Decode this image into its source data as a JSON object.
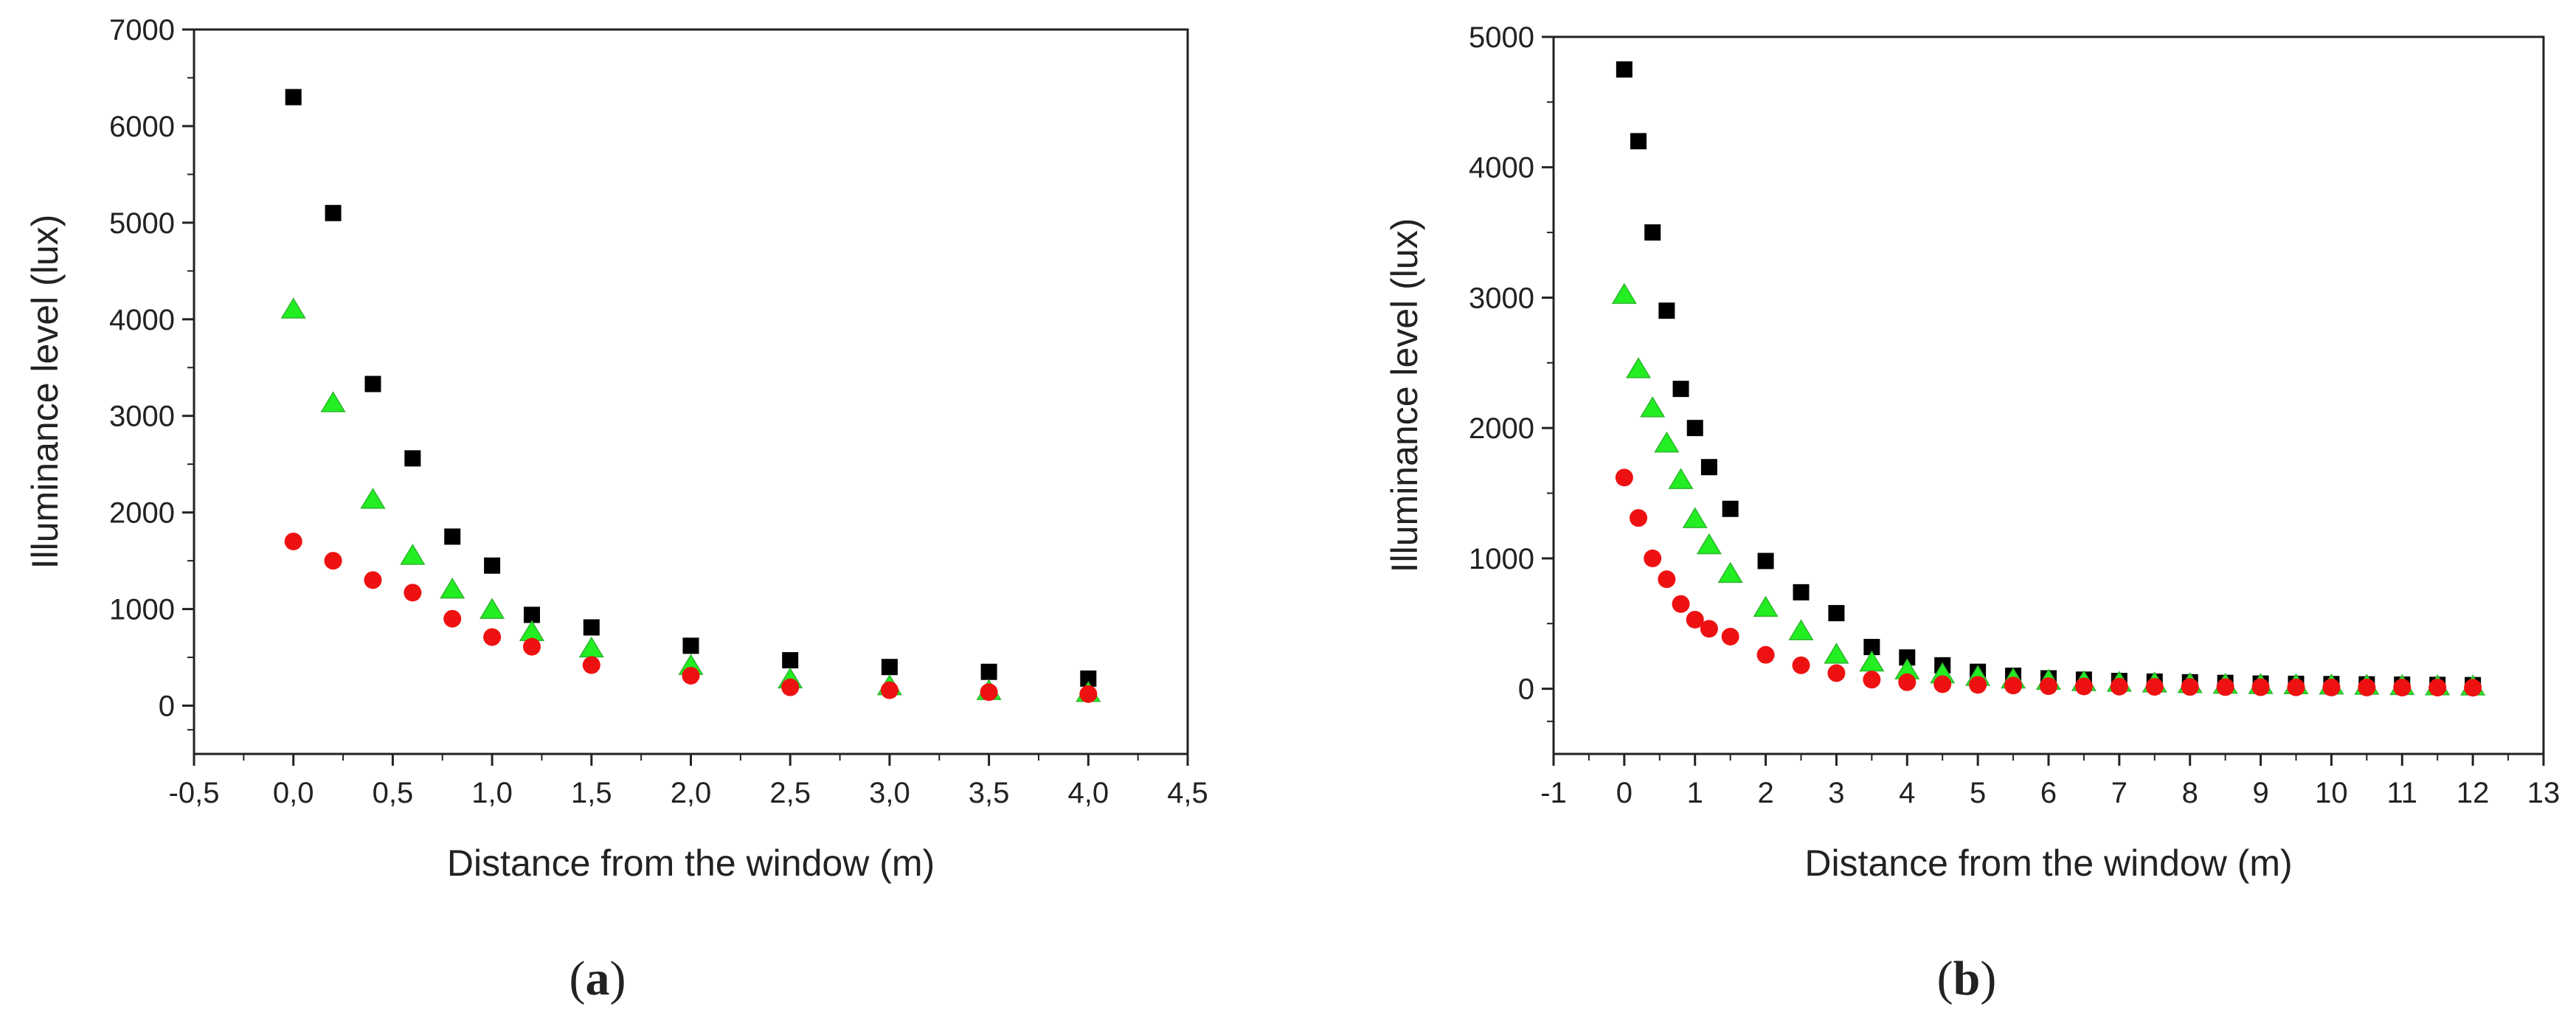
{
  "chart_data": [
    {
      "type": "scatter",
      "panel_label": "(a)",
      "panel_letter": "a",
      "xlabel": "Distance from the window (m)",
      "ylabel": "Illuminance level (lux)",
      "xlim": [
        -0.5,
        4.5
      ],
      "ylim": [
        -500,
        7000
      ],
      "xticks": [
        -0.5,
        0.0,
        0.5,
        1.0,
        1.5,
        2.0,
        2.5,
        3.0,
        3.5,
        4.0,
        4.5
      ],
      "xtick_labels": [
        "-0,5",
        "0,0",
        "0,5",
        "1,0",
        "1,5",
        "2,0",
        "2,5",
        "3,0",
        "3,5",
        "4,0",
        "4,5"
      ],
      "yticks": [
        0,
        1000,
        2000,
        3000,
        4000,
        5000,
        6000,
        7000
      ],
      "ytick_labels": [
        "0",
        "1000",
        "2000",
        "3000",
        "4000",
        "5000",
        "6000",
        "7000"
      ],
      "grid": false,
      "series": [
        {
          "name": "black squares",
          "marker": "square",
          "color": "#000000",
          "x": [
            0.0,
            0.2,
            0.4,
            0.6,
            0.8,
            1.0,
            1.2,
            1.5,
            2.0,
            2.5,
            3.0,
            3.5,
            4.0
          ],
          "y": [
            6300,
            5100,
            3330,
            2560,
            1750,
            1450,
            940,
            810,
            620,
            470,
            400,
            350,
            280
          ]
        },
        {
          "name": "green triangles",
          "marker": "triangle",
          "color": "#22ee22",
          "x": [
            0.0,
            0.2,
            0.4,
            0.6,
            0.8,
            1.0,
            1.2,
            1.5,
            2.0,
            2.5,
            3.0,
            3.5,
            4.0
          ],
          "y": [
            4100,
            3130,
            2130,
            1550,
            1200,
            990,
            760,
            590,
            410,
            270,
            200,
            150,
            130
          ]
        },
        {
          "name": "red circles",
          "marker": "circle",
          "color": "#ee1111",
          "x": [
            0.0,
            0.2,
            0.4,
            0.6,
            0.8,
            1.0,
            1.2,
            1.5,
            2.0,
            2.5,
            3.0,
            3.5,
            4.0
          ],
          "y": [
            1700,
            1500,
            1300,
            1170,
            900,
            710,
            610,
            420,
            310,
            190,
            160,
            140,
            120
          ]
        }
      ]
    },
    {
      "type": "scatter",
      "panel_label": "(b)",
      "panel_letter": "b",
      "xlabel": "Distance from the window (m)",
      "ylabel": "Illuminance level (lux)",
      "xlim": [
        -1,
        13
      ],
      "ylim": [
        -500,
        5000
      ],
      "xticks": [
        -1,
        0,
        1,
        2,
        3,
        4,
        5,
        6,
        7,
        8,
        9,
        10,
        11,
        12,
        13
      ],
      "xtick_labels": [
        "-1",
        "0",
        "1",
        "2",
        "3",
        "4",
        "5",
        "6",
        "7",
        "8",
        "9",
        "10",
        "11",
        "12",
        "13"
      ],
      "yticks": [
        0,
        1000,
        2000,
        3000,
        4000,
        5000
      ],
      "ytick_labels": [
        "0",
        "1000",
        "2000",
        "3000",
        "4000",
        "5000"
      ],
      "grid": false,
      "series": [
        {
          "name": "black squares",
          "marker": "square",
          "color": "#000000",
          "x": [
            0,
            0.2,
            0.4,
            0.6,
            0.8,
            1.0,
            1.2,
            1.5,
            2.0,
            2.5,
            3.0,
            3.5,
            4.0,
            4.5,
            5.0,
            5.5,
            6.0,
            6.5,
            7.0,
            7.5,
            8.0,
            8.5,
            9.0,
            9.5,
            10.0,
            10.5,
            11.0,
            11.5,
            12.0
          ],
          "y": [
            4750,
            4200,
            3500,
            2900,
            2300,
            2000,
            1700,
            1380,
            980,
            740,
            580,
            320,
            240,
            180,
            130,
            100,
            80,
            70,
            60,
            55,
            50,
            45,
            40,
            38,
            36,
            34,
            32,
            30,
            28
          ]
        },
        {
          "name": "green triangles",
          "marker": "triangle",
          "color": "#22ee22",
          "x": [
            0,
            0.2,
            0.4,
            0.6,
            0.8,
            1.0,
            1.2,
            1.5,
            2.0,
            2.5,
            3.0,
            3.5,
            4.0,
            4.5,
            5.0,
            5.5,
            6.0,
            6.5,
            7.0,
            7.5,
            8.0,
            8.5,
            9.0,
            9.5,
            10.0,
            10.5,
            11.0,
            11.5,
            12.0
          ],
          "y": [
            3020,
            2450,
            2150,
            1880,
            1600,
            1300,
            1100,
            880,
            620,
            440,
            260,
            200,
            140,
            110,
            90,
            70,
            60,
            50,
            45,
            40,
            35,
            30,
            28,
            26,
            24,
            22,
            20,
            18,
            16
          ]
        },
        {
          "name": "red circles",
          "marker": "circle",
          "color": "#ee1111",
          "x": [
            0,
            0.2,
            0.4,
            0.6,
            0.8,
            1.0,
            1.2,
            1.5,
            2.0,
            2.5,
            3.0,
            3.5,
            4.0,
            4.5,
            5.0,
            5.5,
            6.0,
            6.5,
            7.0,
            7.5,
            8.0,
            8.5,
            9.0,
            9.5,
            10.0,
            10.5,
            11.0,
            11.5,
            12.0
          ],
          "y": [
            1620,
            1310,
            1000,
            840,
            650,
            530,
            460,
            400,
            260,
            180,
            120,
            70,
            50,
            35,
            30,
            25,
            20,
            18,
            16,
            15,
            14,
            13,
            12,
            11,
            10,
            10,
            9,
            9,
            8
          ]
        }
      ]
    }
  ]
}
